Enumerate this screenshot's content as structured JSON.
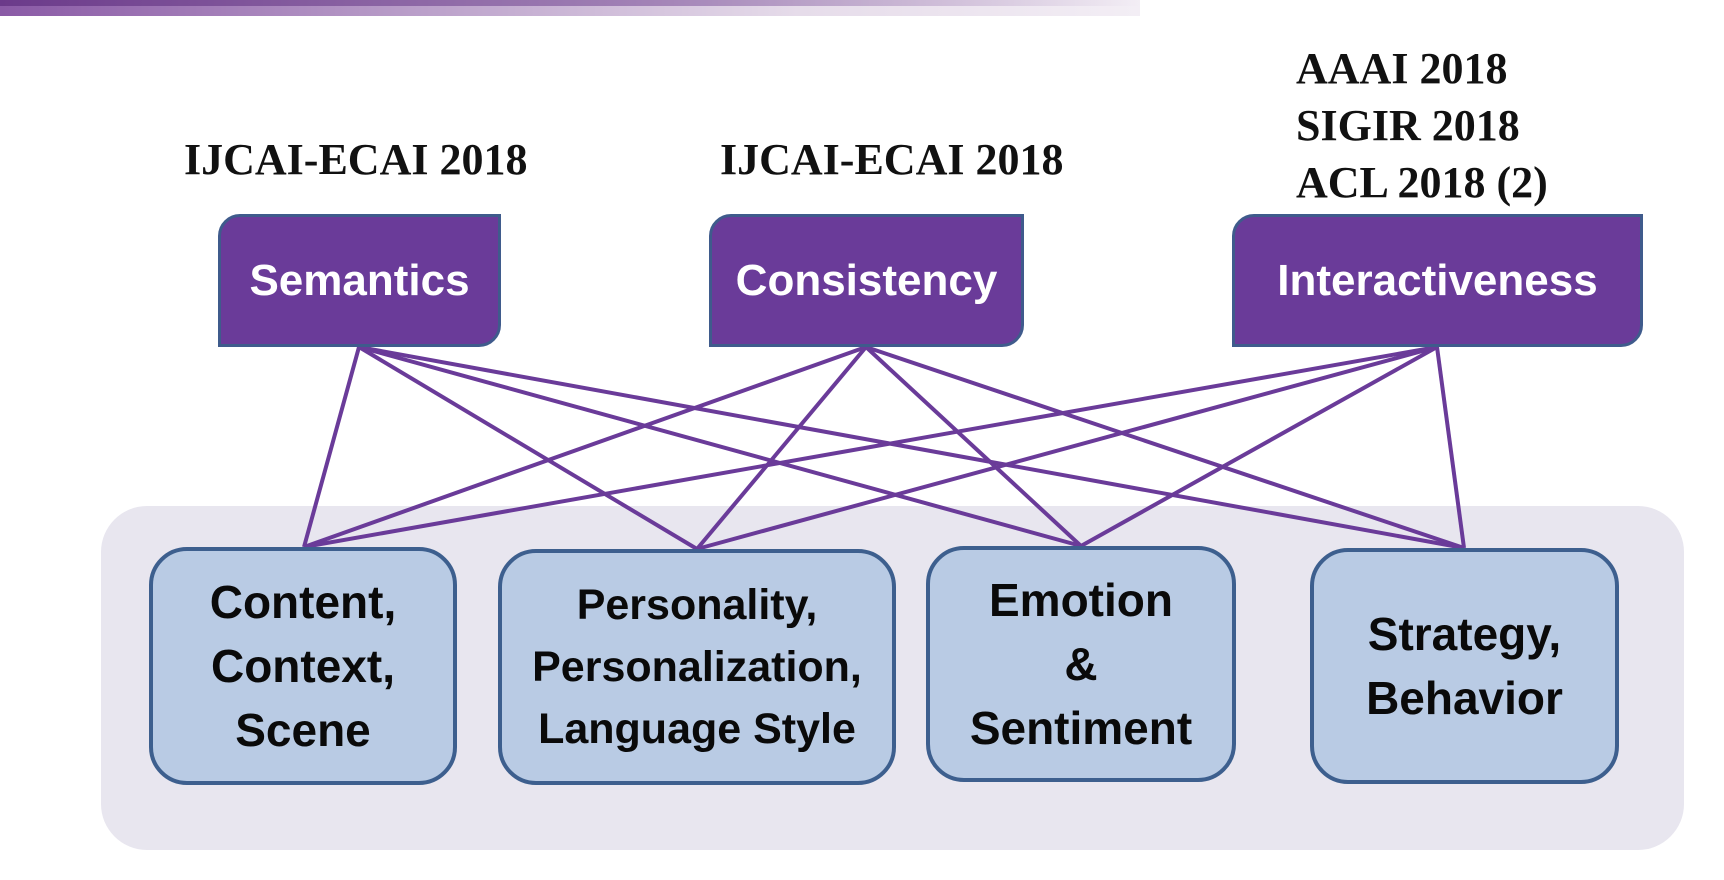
{
  "venues": [
    {
      "lines": [
        "IJCAI-ECAI 2018"
      ]
    },
    {
      "lines": [
        "IJCAI-ECAI 2018"
      ]
    },
    {
      "lines": [
        "AAAI 2018",
        "SIGIR 2018",
        "ACL 2018  (2)"
      ]
    }
  ],
  "aspects": [
    {
      "label": "Semantics"
    },
    {
      "label": "Consistency"
    },
    {
      "label": "Interactiveness"
    }
  ],
  "factors": [
    {
      "lines": [
        "Content,",
        "Context,",
        "Scene"
      ]
    },
    {
      "lines": [
        "Personality,",
        "Personalization,",
        "Language Style"
      ]
    },
    {
      "lines": [
        "Emotion",
        "&",
        "Sentiment"
      ]
    },
    {
      "lines": [
        "Strategy,",
        "Behavior"
      ]
    }
  ],
  "links": [
    [
      "Semantics",
      "Content, Context, Scene"
    ],
    [
      "Semantics",
      "Personality, Personalization, Language Style"
    ],
    [
      "Semantics",
      "Emotion & Sentiment"
    ],
    [
      "Semantics",
      "Strategy, Behavior"
    ],
    [
      "Consistency",
      "Content, Context, Scene"
    ],
    [
      "Consistency",
      "Personality, Personalization, Language Style"
    ],
    [
      "Consistency",
      "Emotion & Sentiment"
    ],
    [
      "Consistency",
      "Strategy, Behavior"
    ],
    [
      "Interactiveness",
      "Content, Context, Scene"
    ],
    [
      "Interactiveness",
      "Personality, Personalization, Language Style"
    ],
    [
      "Interactiveness",
      "Emotion & Sentiment"
    ],
    [
      "Interactiveness",
      "Strategy, Behavior"
    ]
  ],
  "colors": {
    "aspect_fill": "#6a3b99",
    "link_line": "#6a3b99",
    "factor_fill": "#b9cbe4",
    "factor_border": "#3d5f8e",
    "panel_fill": "#e8e6ef"
  }
}
